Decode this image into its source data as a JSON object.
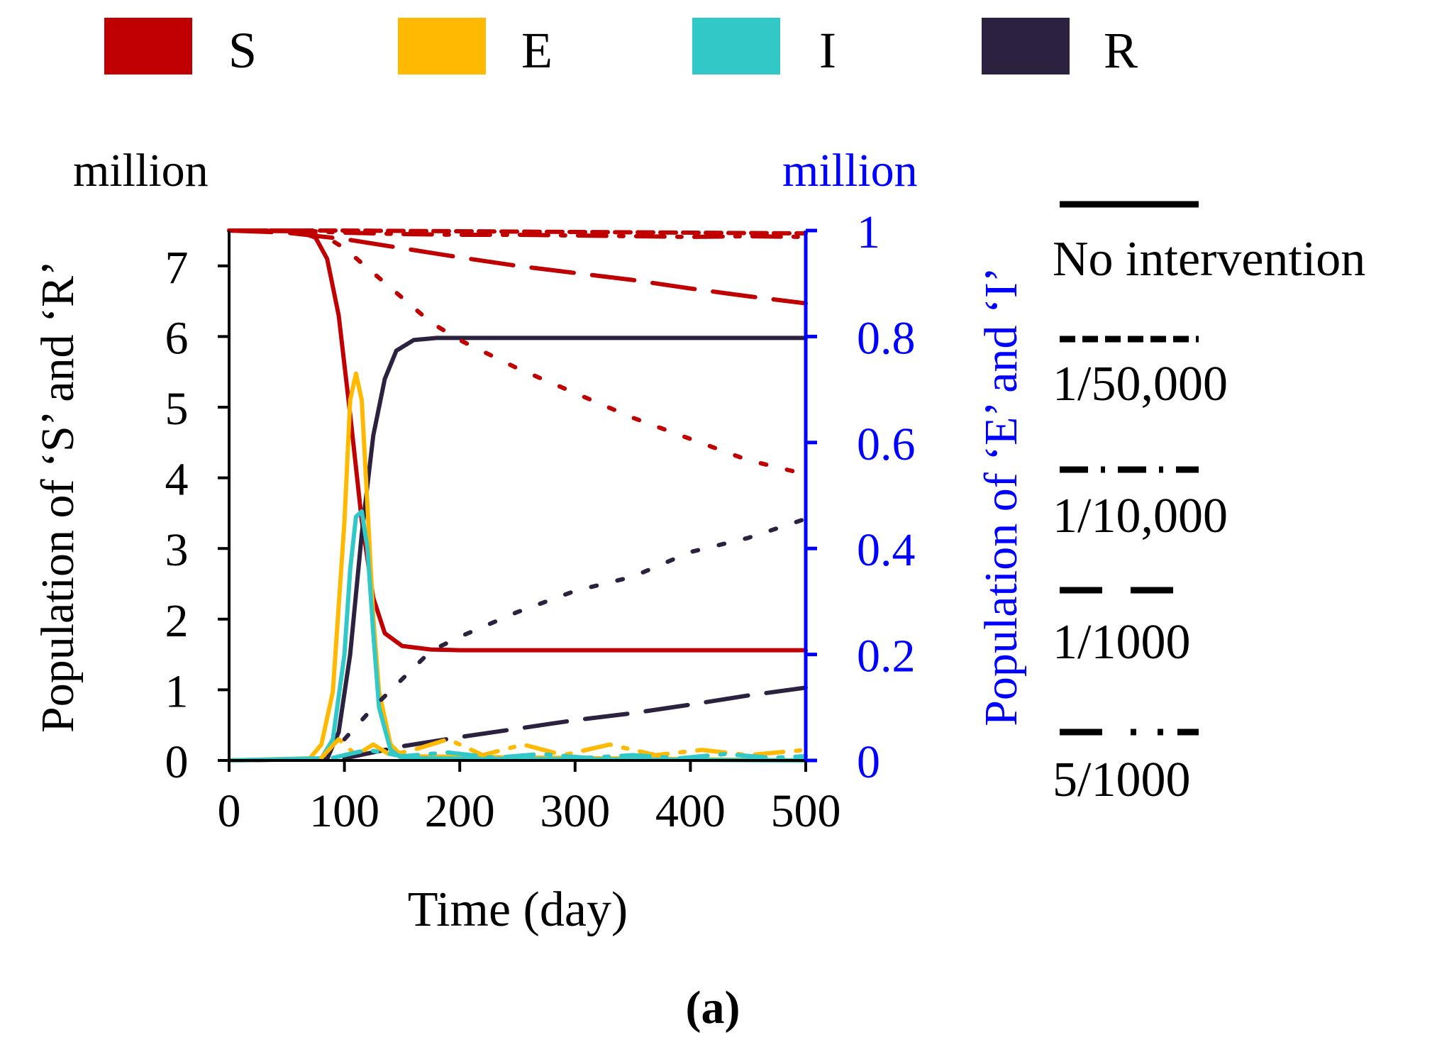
{
  "chart_data": {
    "type": "line",
    "panel_label": "(a)",
    "xlabel": "Time (day)",
    "ylabel_left": "Population of ‘S’ and ‘R’",
    "ylabel_right": "Population of ‘E’ and ‘I’",
    "unit_left": "million",
    "unit_right": "million",
    "xlim": [
      0,
      500
    ],
    "ylim_left": [
      0,
      7.5
    ],
    "ylim_right": [
      0,
      1
    ],
    "xticks": [
      "0",
      "100",
      "200",
      "300",
      "400",
      "500"
    ],
    "xtick_values": [
      0,
      100,
      200,
      300,
      400,
      500
    ],
    "yticks_left": [
      "0",
      "1",
      "2",
      "3",
      "4",
      "5",
      "6",
      "7"
    ],
    "ytick_left_values": [
      0,
      1,
      2,
      3,
      4,
      5,
      6,
      7
    ],
    "yticks_right": [
      "0",
      "0.2",
      "0.4",
      "0.6",
      "0.8",
      "1"
    ],
    "ytick_right_values": [
      0,
      0.2,
      0.4,
      0.6,
      0.8,
      1
    ],
    "colors": {
      "S": "#c00000",
      "E": "#ffb900",
      "I": "#33c8c8",
      "R": "#2d2140",
      "right_axis": "#0000ff",
      "axis": "#000000"
    },
    "compartment_legend": [
      {
        "key": "S",
        "label": "S"
      },
      {
        "key": "E",
        "label": "E"
      },
      {
        "key": "I",
        "label": "I"
      },
      {
        "key": "R",
        "label": "R"
      }
    ],
    "scenario_legend": [
      {
        "label": "No intervention",
        "style": "solid"
      },
      {
        "label": "1/50,000",
        "style": "dash"
      },
      {
        "label": "1/10,000",
        "style": "dashdot"
      },
      {
        "label": "1/1000",
        "style": "longdash"
      },
      {
        "label": "5/1000",
        "style": "longdashdotdot"
      }
    ],
    "series": [
      {
        "name": "S - No intervention",
        "compartment": "S",
        "axis": "left",
        "style": "solid",
        "x": [
          0,
          60,
          75,
          85,
          95,
          105,
          115,
          125,
          135,
          150,
          175,
          200,
          300,
          400,
          500
        ],
        "y": [
          7.5,
          7.49,
          7.4,
          7.1,
          6.3,
          4.9,
          3.4,
          2.3,
          1.8,
          1.62,
          1.57,
          1.56,
          1.56,
          1.56,
          1.56
        ]
      },
      {
        "name": "R - No intervention",
        "compartment": "R",
        "axis": "left",
        "style": "solid",
        "x": [
          0,
          85,
          95,
          105,
          115,
          125,
          135,
          145,
          160,
          180,
          200,
          300,
          400,
          500
        ],
        "y": [
          0,
          0.02,
          0.4,
          1.5,
          3.2,
          4.6,
          5.4,
          5.8,
          5.95,
          5.98,
          5.98,
          5.98,
          5.98,
          5.98
        ]
      },
      {
        "name": "E - No intervention",
        "compartment": "E",
        "axis": "right",
        "style": "solid",
        "x": [
          0,
          70,
          80,
          90,
          100,
          105,
          110,
          115,
          120,
          125,
          130,
          140,
          150,
          500
        ],
        "y": [
          0,
          0.004,
          0.03,
          0.13,
          0.45,
          0.68,
          0.73,
          0.68,
          0.48,
          0.27,
          0.13,
          0.03,
          0.008,
          0
        ]
      },
      {
        "name": "I - No intervention",
        "compartment": "I",
        "axis": "right",
        "style": "solid",
        "x": [
          0,
          80,
          90,
          100,
          105,
          110,
          115,
          120,
          125,
          130,
          140,
          150,
          500
        ],
        "y": [
          0,
          0.004,
          0.04,
          0.2,
          0.36,
          0.46,
          0.47,
          0.4,
          0.24,
          0.1,
          0.02,
          0.004,
          0
        ]
      },
      {
        "name": "S - 1/50,000",
        "compartment": "S",
        "axis": "left",
        "style": "dash",
        "x": [
          0,
          100,
          200,
          300,
          400,
          500
        ],
        "y": [
          7.5,
          7.5,
          7.49,
          7.48,
          7.47,
          7.46
        ]
      },
      {
        "name": "S - 1/10,000",
        "compartment": "S",
        "axis": "left",
        "style": "dashdot",
        "x": [
          0,
          60,
          100,
          150,
          200,
          250,
          300,
          350,
          400,
          450,
          500
        ],
        "y": [
          7.5,
          7.5,
          7.47,
          7.45,
          7.44,
          7.44,
          7.43,
          7.42,
          7.41,
          7.42,
          7.41
        ]
      },
      {
        "name": "S - 1/1000",
        "compartment": "S",
        "axis": "left",
        "style": "longdash",
        "x": [
          0,
          50,
          100,
          150,
          200,
          250,
          300,
          350,
          400,
          450,
          500
        ],
        "y": [
          7.5,
          7.47,
          7.38,
          7.25,
          7.12,
          7.0,
          6.9,
          6.8,
          6.68,
          6.57,
          6.47
        ]
      },
      {
        "name": "R - 1/1000",
        "compartment": "R",
        "axis": "left",
        "style": "longdash",
        "x": [
          100,
          150,
          200,
          250,
          300,
          350,
          400,
          450,
          500
        ],
        "y": [
          0.03,
          0.2,
          0.33,
          0.45,
          0.57,
          0.67,
          0.79,
          0.92,
          1.03
        ]
      },
      {
        "name": "S - 5/1000",
        "compartment": "S",
        "axis": "left",
        "style": "longdashdotdot",
        "x": [
          0,
          60,
          80,
          100,
          125,
          150,
          175,
          200,
          250,
          300,
          350,
          400,
          450,
          500
        ],
        "y": [
          7.5,
          7.5,
          7.45,
          7.25,
          6.9,
          6.55,
          6.2,
          5.95,
          5.55,
          5.2,
          4.85,
          4.55,
          4.25,
          4.05
        ]
      },
      {
        "name": "R - 5/1000",
        "compartment": "R",
        "axis": "left",
        "style": "longdashdotdot",
        "x": [
          100,
          125,
          150,
          175,
          200,
          250,
          300,
          350,
          400,
          450,
          500
        ],
        "y": [
          0.3,
          0.75,
          1.15,
          1.55,
          1.75,
          2.1,
          2.4,
          2.6,
          2.95,
          3.15,
          3.42
        ]
      },
      {
        "name": "E - interventions",
        "compartment": "E",
        "axis": "right",
        "style": "dashdot",
        "x": [
          80,
          95,
          110,
          125,
          140,
          160,
          190,
          220,
          255,
          290,
          330,
          370,
          410,
          450,
          500
        ],
        "y": [
          0.005,
          0.04,
          0.01,
          0.03,
          0.01,
          0.02,
          0.04,
          0.01,
          0.03,
          0.01,
          0.03,
          0.01,
          0.02,
          0.01,
          0.02
        ]
      },
      {
        "name": "I - interventions",
        "compartment": "I",
        "axis": "right",
        "style": "dashdot",
        "x": [
          90,
          120,
          150,
          190,
          230,
          270,
          310,
          350,
          390,
          430,
          470,
          500
        ],
        "y": [
          0.005,
          0.02,
          0.008,
          0.015,
          0.005,
          0.012,
          0.005,
          0.01,
          0.004,
          0.012,
          0.005,
          0.008
        ]
      }
    ]
  }
}
